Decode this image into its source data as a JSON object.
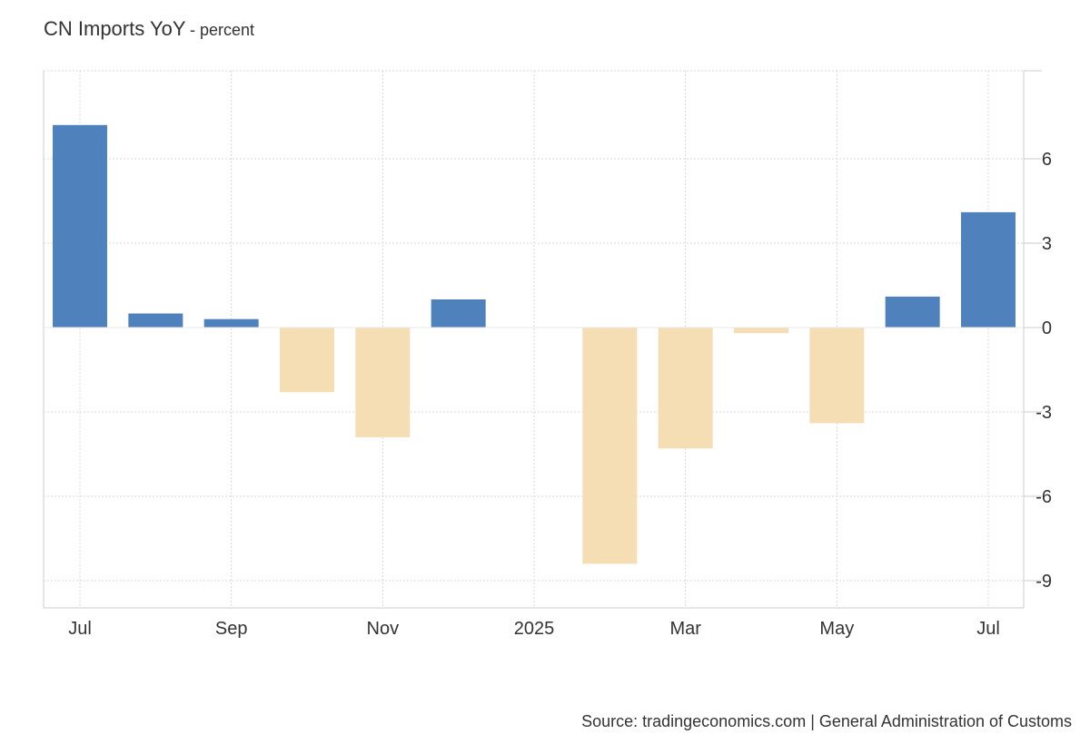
{
  "title": {
    "main": "CN Imports YoY",
    "unit": "- percent"
  },
  "source": "Source: tradingeconomics.com | General Administration of Customs",
  "chart_data": {
    "type": "bar",
    "title": "CN Imports YoY",
    "unit": "percent",
    "categories": [
      "2024-07",
      "2024-08",
      "2024-09",
      "2024-10",
      "2024-11",
      "2024-12",
      "2025-01",
      "2025-02",
      "2025-03",
      "2025-04",
      "2025-05",
      "2025-06",
      "2025-07"
    ],
    "values": [
      7.2,
      0.5,
      0.3,
      -2.3,
      -3.9,
      1.0,
      null,
      -8.4,
      -4.3,
      -0.2,
      -3.4,
      1.1,
      4.1
    ],
    "ylim": [
      -10,
      9
    ],
    "y_ticks": [
      "6",
      "3",
      "0",
      "-3",
      "-6",
      "-9"
    ],
    "y_tick_values": [
      6,
      3,
      0,
      -3,
      -6,
      -9
    ],
    "x_tick_labels": [
      "Jul",
      "Sep",
      "Nov",
      "2025",
      "Mar",
      "May",
      "Jul"
    ],
    "colors": {
      "positive": "#4f81bd",
      "negative": "#f5deb3"
    },
    "grid": true,
    "y_axis_side": "right"
  }
}
